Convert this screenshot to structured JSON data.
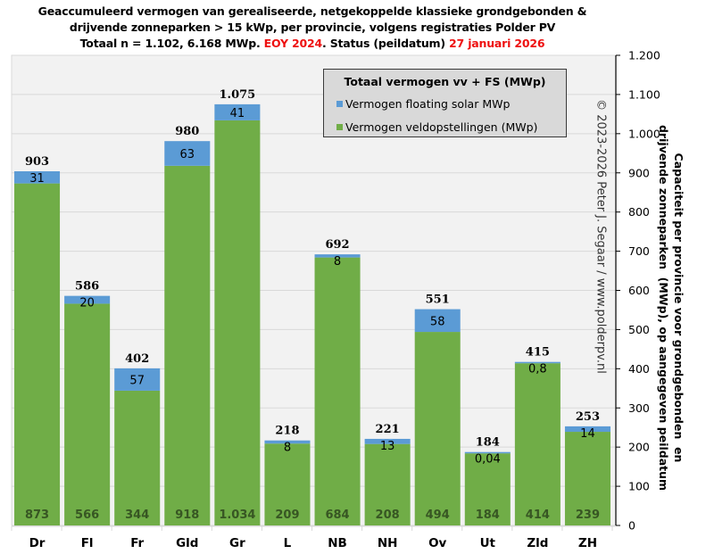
{
  "title": {
    "line1": "Geaccumuleerd vermogen van gerealiseerde, netgekoppelde klassieke grondgebonden &",
    "line2": "drijvende zonneparken > 15 kWp, per provincie, volgens registraties Polder PV",
    "line3_pre": "Totaal n = 1.102, 6.168 MWp. ",
    "line3_red1": "EOY 2024",
    "line3_mid": ". Status (peildatum) ",
    "line3_red2": "27 januari 2026"
  },
  "copyright": "© 2023-2026 Peter J. Segaar / www.polderpv.nl",
  "chart_data": {
    "type": "bar",
    "stacked": true,
    "title": "Geaccumuleerd vermogen van gerealiseerde, netgekoppelde klassieke grondgebonden & drijvende zonneparken > 15 kWp, per provincie, volgens registraties Polder PV. Totaal n = 1.102, 6.168 MWp. EOY 2024. Status (peildatum) 27 januari 2026",
    "categories": [
      "Dr",
      "Fl",
      "Fr",
      "Gld",
      "Gr",
      "L",
      "NB",
      "NH",
      "Ov",
      "Ut",
      "Zld",
      "ZH"
    ],
    "series": [
      {
        "name": "Vermogen veldopstellingen (MWp)",
        "color": "#70ad47",
        "values": [
          873,
          566,
          344,
          918,
          1034,
          209,
          684,
          208,
          494,
          184,
          414,
          239
        ],
        "labels": [
          "873",
          "566",
          "344",
          "918",
          "1.034",
          "209",
          "684",
          "208",
          "494",
          "184",
          "414",
          "239"
        ]
      },
      {
        "name": "Vermogen floating solar MWp",
        "color": "#5b9bd5",
        "values": [
          31,
          20,
          57,
          63,
          41,
          8,
          8,
          13,
          58,
          0.04,
          0.8,
          14
        ],
        "labels": [
          "31",
          "20",
          "57",
          "63",
          "41",
          "8",
          "8",
          "13",
          "58",
          "0,04",
          "0,8",
          "14"
        ]
      }
    ],
    "totals": [
      903,
      586,
      402,
      980,
      1075,
      218,
      692,
      221,
      551,
      184,
      415,
      253
    ],
    "total_labels": [
      "903",
      "586",
      "402",
      "980",
      "1.075",
      "218",
      "692",
      "221",
      "551",
      "184",
      "415",
      "253"
    ],
    "legend_title": "Totaal vermogen vv + FS (MWp)",
    "legend_position": "top-right",
    "xlabel": "",
    "ylabel": "Capaciteit per provincie voor grondgebonden en drijvende zonneparken (MWp), op aangegeven peildatum",
    "y_axis_side": "right",
    "ylim": [
      0,
      1200
    ],
    "ytick_step": 100,
    "ytick_labels": [
      "0",
      "100",
      "200",
      "300",
      "400",
      "500",
      "600",
      "700",
      "800",
      "900",
      "1.000",
      "1.100",
      "1.200"
    ],
    "grid": true
  }
}
